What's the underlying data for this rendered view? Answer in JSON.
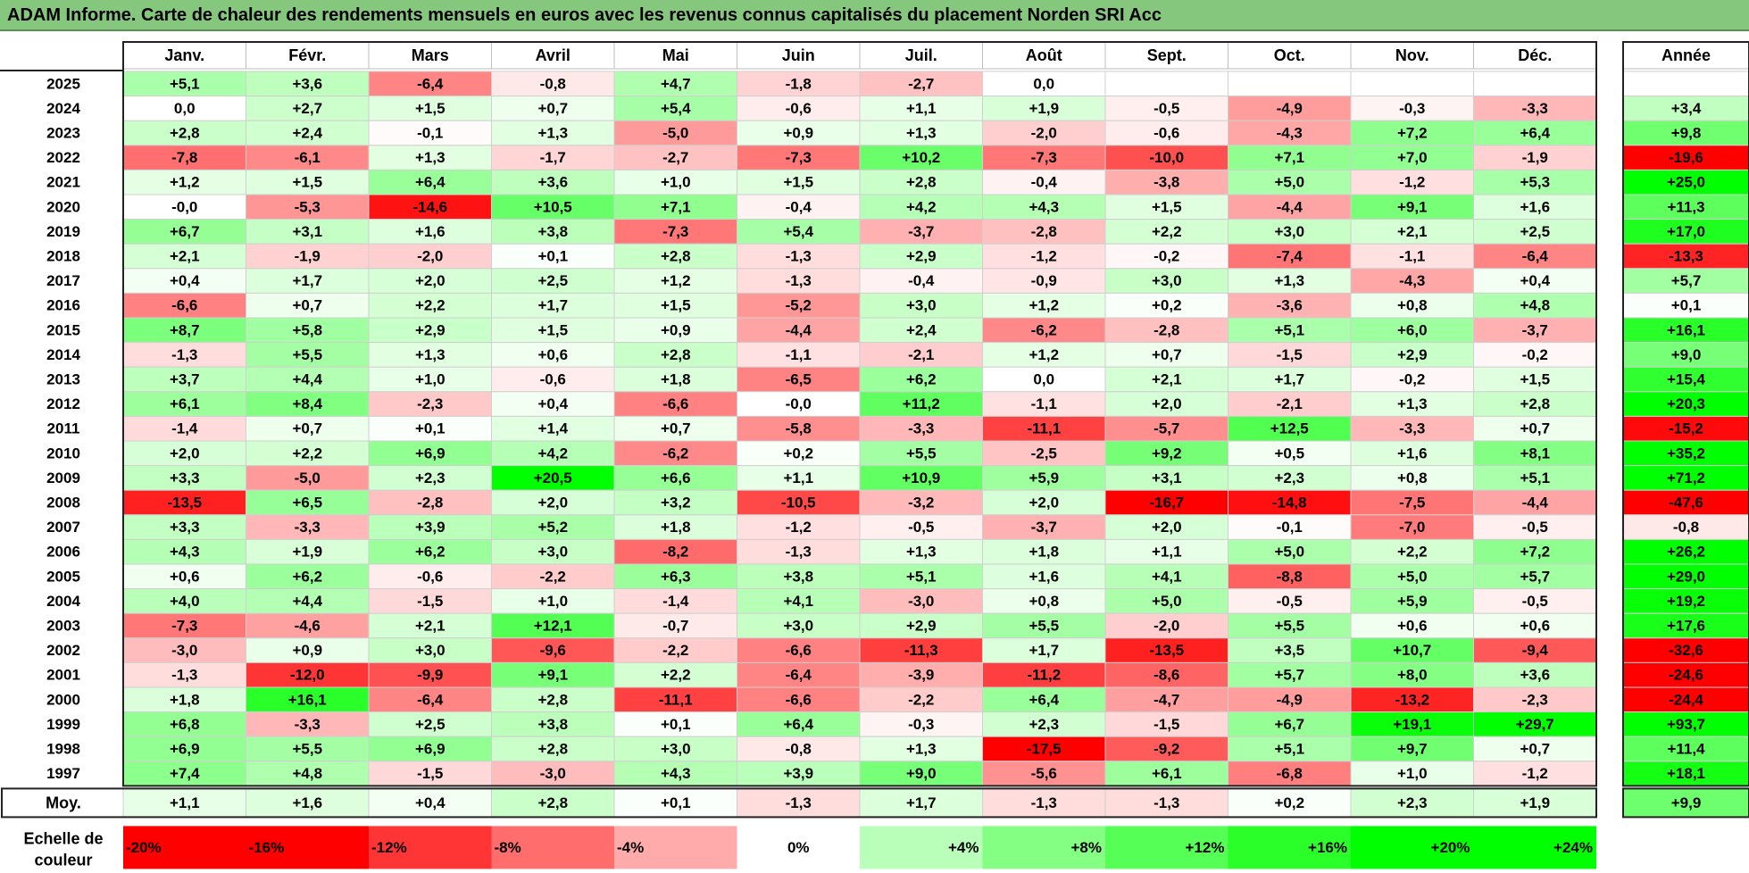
{
  "title": "ADAM Informe. Carte de chaleur des rendements mensuels en euros avec les revenus connus capitalisés du placement Norden SRI Acc",
  "chart_data": {
    "type": "heatmap",
    "title": "ADAM Informe. Carte de chaleur des rendements mensuels en euros avec les revenus connus capitalisés du placement Norden SRI Acc",
    "months": [
      "Janv.",
      "Févr.",
      "Mars",
      "Avril",
      "Mai",
      "Juin",
      "Juil.",
      "Août",
      "Sept.",
      "Oct.",
      "Nov.",
      "Déc."
    ],
    "annual_label": "Année",
    "average_label": "Moy.",
    "rows": [
      {
        "year": "2025",
        "values": [
          5.1,
          3.6,
          -6.4,
          -0.8,
          4.7,
          -1.8,
          -2.7,
          0.0,
          null,
          null,
          null,
          null
        ],
        "annual": null
      },
      {
        "year": "2024",
        "values": [
          0.0,
          2.7,
          1.5,
          0.7,
          5.4,
          -0.6,
          1.1,
          1.9,
          -0.5,
          -4.9,
          -0.3,
          -3.3
        ],
        "annual": 3.4
      },
      {
        "year": "2023",
        "values": [
          2.8,
          2.4,
          -0.1,
          1.3,
          -5.0,
          0.9,
          1.3,
          -2.0,
          -0.6,
          -4.3,
          7.2,
          6.4
        ],
        "annual": 9.8
      },
      {
        "year": "2022",
        "values": [
          -7.8,
          -6.1,
          1.3,
          -1.7,
          -2.7,
          -7.3,
          10.2,
          -7.3,
          -10.0,
          7.1,
          7.0,
          -1.9
        ],
        "annual": -19.6
      },
      {
        "year": "2021",
        "values": [
          1.2,
          1.5,
          6.4,
          3.6,
          1.0,
          1.5,
          2.8,
          -0.4,
          -3.8,
          5.0,
          -1.2,
          5.3
        ],
        "annual": 25.0
      },
      {
        "year": "2020",
        "values": [
          -0.0,
          -5.3,
          -14.6,
          10.5,
          7.1,
          -0.4,
          4.2,
          4.3,
          1.5,
          -4.4,
          9.1,
          1.6
        ],
        "annual": 11.3
      },
      {
        "year": "2019",
        "values": [
          6.7,
          3.1,
          1.6,
          3.8,
          -7.3,
          5.4,
          -3.7,
          -2.8,
          2.2,
          3.0,
          2.1,
          2.5
        ],
        "annual": 17.0
      },
      {
        "year": "2018",
        "values": [
          2.1,
          -1.9,
          -2.0,
          0.1,
          2.8,
          -1.3,
          2.9,
          -1.2,
          -0.2,
          -7.4,
          -1.1,
          -6.4
        ],
        "annual": -13.3
      },
      {
        "year": "2017",
        "values": [
          0.4,
          1.7,
          2.0,
          2.5,
          1.2,
          -1.3,
          -0.4,
          -0.9,
          3.0,
          1.3,
          -4.3,
          0.4
        ],
        "annual": 5.7
      },
      {
        "year": "2016",
        "values": [
          -6.6,
          0.7,
          2.2,
          1.7,
          1.5,
          -5.2,
          3.0,
          1.2,
          0.2,
          -3.6,
          0.8,
          4.8
        ],
        "annual": 0.1
      },
      {
        "year": "2015",
        "values": [
          8.7,
          5.8,
          2.9,
          1.5,
          0.9,
          -4.4,
          2.4,
          -6.2,
          -2.8,
          5.1,
          6.0,
          -3.7
        ],
        "annual": 16.1
      },
      {
        "year": "2014",
        "values": [
          -1.3,
          5.5,
          1.3,
          0.6,
          2.8,
          -1.1,
          -2.1,
          1.2,
          0.7,
          -1.5,
          2.9,
          -0.2
        ],
        "annual": 9.0
      },
      {
        "year": "2013",
        "values": [
          3.7,
          4.4,
          1.0,
          -0.6,
          1.8,
          -6.5,
          6.2,
          0.0,
          2.1,
          1.7,
          -0.2,
          1.5
        ],
        "annual": 15.4
      },
      {
        "year": "2012",
        "values": [
          6.1,
          8.4,
          -2.3,
          0.4,
          -6.6,
          -0.0,
          11.2,
          -1.1,
          2.0,
          -2.1,
          1.3,
          2.8
        ],
        "annual": 20.3
      },
      {
        "year": "2011",
        "values": [
          -1.4,
          0.7,
          0.1,
          1.4,
          0.7,
          -5.8,
          -3.3,
          -11.1,
          -5.7,
          12.5,
          -3.3,
          0.7
        ],
        "annual": -15.2
      },
      {
        "year": "2010",
        "values": [
          2.0,
          2.2,
          6.9,
          4.2,
          -6.2,
          0.2,
          5.5,
          -2.5,
          9.2,
          0.5,
          1.6,
          8.1
        ],
        "annual": 35.2
      },
      {
        "year": "2009",
        "values": [
          3.3,
          -5.0,
          2.3,
          20.5,
          6.6,
          1.1,
          10.9,
          5.9,
          3.1,
          2.3,
          0.8,
          5.1
        ],
        "annual": 71.2
      },
      {
        "year": "2008",
        "values": [
          -13.5,
          6.5,
          -2.8,
          2.0,
          3.2,
          -10.5,
          -3.2,
          2.0,
          -16.7,
          -14.8,
          -7.5,
          -4.4
        ],
        "annual": -47.6
      },
      {
        "year": "2007",
        "values": [
          3.3,
          -3.3,
          3.9,
          5.2,
          1.8,
          -1.2,
          -0.5,
          -3.7,
          2.0,
          -0.1,
          -7.0,
          -0.5
        ],
        "annual": -0.8
      },
      {
        "year": "2006",
        "values": [
          4.3,
          1.9,
          6.2,
          3.0,
          -8.2,
          -1.3,
          1.3,
          1.8,
          1.1,
          5.0,
          2.2,
          7.2
        ],
        "annual": 26.2
      },
      {
        "year": "2005",
        "values": [
          0.6,
          6.2,
          -0.6,
          -2.2,
          6.3,
          3.8,
          5.1,
          1.6,
          4.1,
          -8.8,
          5.0,
          5.7
        ],
        "annual": 29.0
      },
      {
        "year": "2004",
        "values": [
          4.0,
          4.4,
          -1.5,
          1.0,
          -1.4,
          4.1,
          -3.0,
          0.8,
          5.0,
          -0.5,
          5.9,
          -0.5
        ],
        "annual": 19.2
      },
      {
        "year": "2003",
        "values": [
          -7.3,
          -4.6,
          2.1,
          12.1,
          -0.7,
          3.0,
          2.9,
          5.5,
          -2.0,
          5.5,
          0.6,
          0.6
        ],
        "annual": 17.6
      },
      {
        "year": "2002",
        "values": [
          -3.0,
          0.9,
          3.0,
          -9.6,
          -2.2,
          -6.6,
          -11.3,
          1.7,
          -13.5,
          3.5,
          10.7,
          -9.4
        ],
        "annual": -32.6
      },
      {
        "year": "2001",
        "values": [
          -1.3,
          -12.0,
          -9.9,
          9.1,
          2.2,
          -6.4,
          -3.9,
          -11.2,
          -8.6,
          5.7,
          8.0,
          3.6
        ],
        "annual": -24.6
      },
      {
        "year": "2000",
        "values": [
          1.8,
          16.1,
          -6.4,
          2.8,
          -11.1,
          -6.6,
          -2.2,
          6.4,
          -4.7,
          -4.9,
          -13.2,
          -2.3
        ],
        "annual": -24.4
      },
      {
        "year": "1999",
        "values": [
          6.8,
          -3.3,
          2.5,
          3.8,
          0.1,
          6.4,
          -0.3,
          2.3,
          -1.5,
          6.7,
          19.1,
          29.7
        ],
        "annual": 93.7
      },
      {
        "year": "1998",
        "values": [
          6.9,
          5.5,
          6.9,
          2.8,
          3.0,
          -0.8,
          1.3,
          -17.5,
          -9.2,
          5.1,
          9.7,
          0.7
        ],
        "annual": 11.4
      },
      {
        "year": "1997",
        "values": [
          7.4,
          4.8,
          -1.5,
          -3.0,
          4.3,
          3.9,
          9.0,
          -5.6,
          6.1,
          -6.8,
          1.0,
          -1.2
        ],
        "annual": 18.1
      }
    ],
    "average": {
      "values": [
        1.1,
        1.6,
        0.4,
        2.8,
        0.1,
        -1.3,
        1.7,
        -1.3,
        -1.3,
        0.2,
        2.3,
        1.9
      ],
      "annual": 9.9
    },
    "scale_label": "Echelle de couleur",
    "scale": [
      -20,
      -16,
      -12,
      -8,
      -4,
      0,
      4,
      8,
      12,
      16,
      20,
      24
    ],
    "scale_labels": [
      "-20%",
      "-16%",
      "-12%",
      "-8%",
      "-4%",
      "0%",
      "+4%",
      "+8%",
      "+12%",
      "+16%",
      "+20%",
      "+24%"
    ],
    "colors": {
      "negative": "#ff0000",
      "neutral": "#ffffff",
      "positive": "#00ff00",
      "title_bar": "#86c77e"
    }
  }
}
